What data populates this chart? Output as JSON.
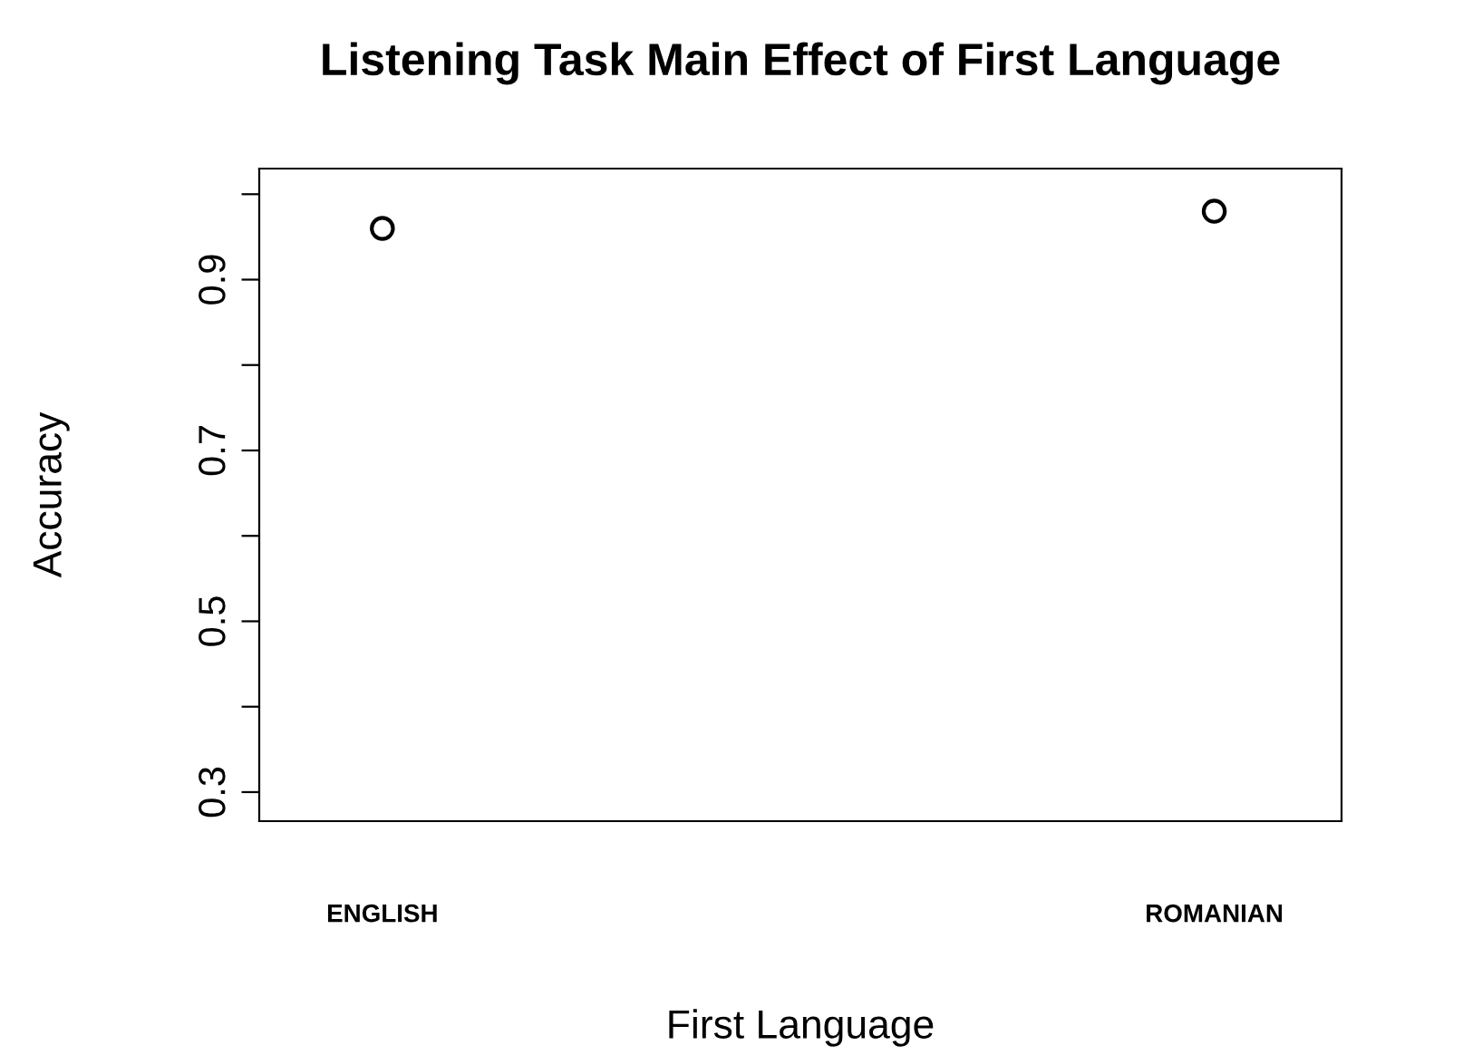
{
  "chart_data": {
    "type": "scatter",
    "title": "Listening Task Main Effect of First Language",
    "xlabel": "First Language",
    "ylabel": "Accuracy",
    "categories": [
      "ENGLISH",
      "ROMANIAN"
    ],
    "series": [
      {
        "color": "#000000",
        "values": [
          0.96,
          0.98
        ]
      }
    ],
    "marker": "circle",
    "ylim": [
      0.266,
      1.03
    ],
    "yticks": [
      0.3,
      {
        "value": 0.4,
        "label": null
      },
      0.5,
      {
        "value": 0.6,
        "label": null
      },
      0.7,
      {
        "value": 0.8,
        "label": null
      },
      0.9,
      {
        "value": 1.0,
        "label": null
      }
    ],
    "grid": false,
    "legend": false
  }
}
